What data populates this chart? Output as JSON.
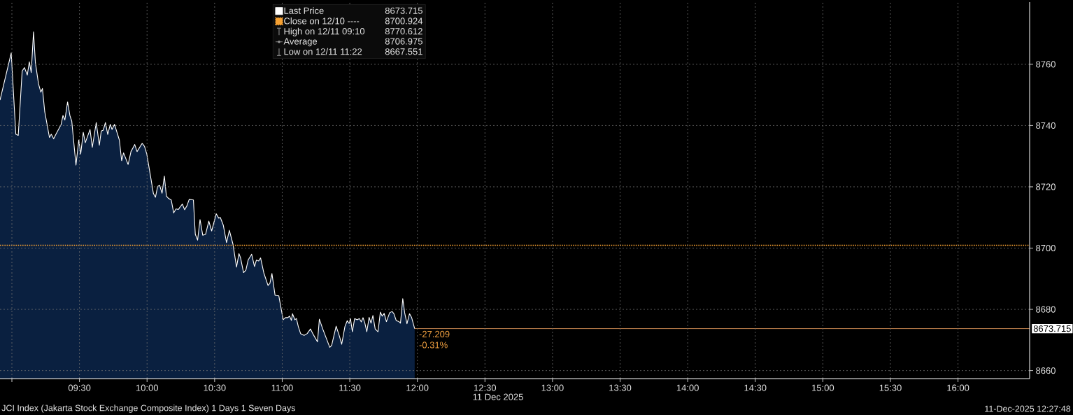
{
  "chart_data": {
    "type": "area",
    "xlabel": "11 Dec 2025",
    "xlim": [
      8.912,
      16.53
    ],
    "xticks": [
      {
        "value": 9,
        "label": null
      },
      {
        "value": 9.5,
        "label": "09:30"
      },
      {
        "value": 10,
        "label": "10:00"
      },
      {
        "value": 10.5,
        "label": "10:30"
      },
      {
        "value": 11,
        "label": "11:00"
      },
      {
        "value": 11.5,
        "label": "11:30"
      },
      {
        "value": 12,
        "label": "12:00"
      },
      {
        "value": 12.5,
        "label": "12:30"
      },
      {
        "value": 13,
        "label": "13:00"
      },
      {
        "value": 13.5,
        "label": "13:30"
      },
      {
        "value": 14,
        "label": "14:00"
      },
      {
        "value": 14.5,
        "label": "14:30"
      },
      {
        "value": 15,
        "label": "15:00"
      },
      {
        "value": 15.5,
        "label": "15:30"
      },
      {
        "value": 16,
        "label": "16:00"
      }
    ],
    "ylim": [
      8657.4,
      8780.3
    ],
    "yticks": [
      8660,
      8680,
      8700,
      8720,
      8740,
      8760
    ],
    "grid": true,
    "legend": "top left",
    "series": [
      {
        "name": "Last Price",
        "color": "#ffffff",
        "x": [
          8.912,
          8.995,
          9.029,
          9.047,
          9.076,
          9.093,
          9.114,
          9.129,
          9.143,
          9.16,
          9.174,
          9.197,
          9.214,
          9.226,
          9.243,
          9.278,
          9.291,
          9.309,
          9.326,
          9.364,
          9.378,
          9.392,
          9.412,
          9.429,
          9.443,
          9.474,
          9.495,
          9.509,
          9.528,
          9.543,
          9.578,
          9.595,
          9.624,
          9.647,
          9.661,
          9.676,
          9.692,
          9.709,
          9.728,
          9.741,
          9.759,
          9.795,
          9.812,
          9.826,
          9.86,
          9.881,
          9.909,
          9.926,
          9.964,
          9.981,
          9.998,
          10.024,
          10.047,
          10.062,
          10.078,
          10.093,
          10.111,
          10.128,
          10.143,
          10.157,
          10.179,
          10.197,
          10.214,
          10.231,
          10.261,
          10.278,
          10.295,
          10.312,
          10.343,
          10.357,
          10.374,
          10.392,
          10.412,
          10.433,
          10.457,
          10.478,
          10.512,
          10.53,
          10.542,
          10.564,
          10.588,
          10.609,
          10.636,
          10.662,
          10.68,
          10.692,
          10.714,
          10.731,
          10.748,
          10.774,
          10.795,
          10.809,
          10.826,
          10.84,
          10.864,
          10.895,
          10.909,
          10.924,
          10.947,
          10.975,
          11.007,
          11.024,
          11.042,
          11.054,
          11.068,
          11.076,
          11.094,
          11.105,
          11.119,
          11.136,
          11.162,
          11.185,
          11.209,
          11.231,
          11.261,
          11.275,
          11.3,
          11.326,
          11.352,
          11.366,
          11.399,
          11.423,
          11.44,
          11.464,
          11.481,
          11.495,
          11.505,
          11.519,
          11.536,
          11.554,
          11.571,
          11.585,
          11.598,
          11.612,
          11.626,
          11.643,
          11.657,
          11.671,
          11.688,
          11.709,
          11.726,
          11.74,
          11.754,
          11.771,
          11.795,
          11.813,
          11.826,
          11.844,
          11.864,
          11.875,
          11.892,
          11.906,
          11.923,
          11.942,
          11.957,
          11.98
        ],
        "values": [
          8748.3,
          8763.7,
          8737.2,
          8736.8,
          8757.8,
          8758.9,
          8756.5,
          8760.8,
          8757.3,
          8770.6,
          8760.5,
          8753.6,
          8750.9,
          8752.1,
          8744.5,
          8736.1,
          8737.2,
          8735.7,
          8737.2,
          8740.3,
          8743.3,
          8741.8,
          8747.7,
          8743.3,
          8741.4,
          8727.1,
          8735.3,
          8730.7,
          8737.8,
          8734.4,
          8738.7,
          8732.9,
          8741.0,
          8733.6,
          8738.2,
          8738.5,
          8741.0,
          8737.1,
          8740.4,
          8738.7,
          8740.4,
          8735.3,
          8728.5,
          8731.1,
          8727.3,
          8731.5,
          8733.8,
          8731.5,
          8734.2,
          8733.2,
          8730.7,
          8723.9,
          8717.8,
          8716.6,
          8720.1,
          8720.5,
          8717.9,
          8723.5,
          8717.0,
          8716.3,
          8715.7,
          8711.5,
          8712.8,
          8712.6,
          8714.4,
          8712.5,
          8713.8,
          8715.9,
          8715.7,
          8704.5,
          8702.6,
          8709.3,
          8704.2,
          8704.5,
          8708.8,
          8705.6,
          8711.2,
          8709.8,
          8710.0,
          8707.5,
          8701.8,
          8705.8,
          8701.2,
          8693.8,
          8698.2,
          8696.8,
          8692.0,
          8692.8,
          8696.1,
          8698.0,
          8694.0,
          8696.1,
          8695.8,
          8696.8,
          8691.9,
          8687.8,
          8688.5,
          8691.7,
          8684.6,
          8684.4,
          8676.6,
          8677.3,
          8677.3,
          8677.8,
          8676.4,
          8678.6,
          8676.6,
          8677.0,
          8674.4,
          8672.1,
          8671.5,
          8672.1,
          8673.6,
          8671.7,
          8669.4,
          8676.8,
          8673.6,
          8670.6,
          8667.6,
          8668.3,
          8674.5,
          8671.3,
          8668.6,
          8674.4,
          8676.3,
          8675.4,
          8677.0,
          8672.7,
          8677.0,
          8676.6,
          8677.0,
          8675.9,
          8677.3,
          8675.4,
          8672.7,
          8677.4,
          8675.5,
          8678.0,
          8673.6,
          8672.7,
          8679.1,
          8677.8,
          8678.7,
          8676.0,
          8678.9,
          8679.3,
          8678.6,
          8676.3,
          8676.0,
          8675.5,
          8683.5,
          8678.9,
          8675.3,
          8678.6,
          8677.4,
          8673.7
        ]
      }
    ],
    "ref_lines": [
      {
        "axis": "y",
        "value": 8700.924,
        "label": "Close on 12/10 ----",
        "color": "#f5a032",
        "line_style": "dotted"
      },
      {
        "axis": "y",
        "value": 8673.715,
        "label": "8673.715",
        "color": "#e39a5c",
        "line_style": "solid"
      }
    ],
    "annotations": [
      "8673.715",
      "8700.924",
      "High on 12/11 09:10",
      "8770.612",
      "Average",
      "8706.975",
      "Low on 12/11 11:22",
      "8667.551",
      "-27.209",
      "-0.31%",
      "JCI Index (Jakarta Stock Exchange Composite Index) 1 Days 1 Seven Days",
      "11-Dec-2025 12:27:48"
    ]
  }
}
